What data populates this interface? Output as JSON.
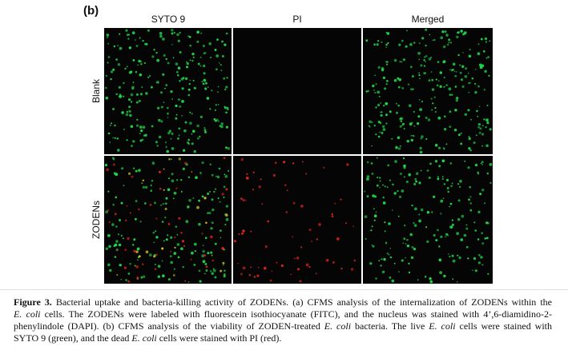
{
  "panel_label": "(b)",
  "columns": [
    "SYTO 9",
    "PI",
    "Merged"
  ],
  "rows": [
    "Blank",
    "ZODENs"
  ],
  "caption": {
    "lines": [
      [
        "Figure 3.",
        " Bacterial uptake and bacteria-killing activity of ZODENs. (a) CFMS analysis of the internalization of ZODENs within the"
      ],
      [
        "E. coli",
        " cells. The ZODENs were labeled with fluorescein isothiocyanate (FITC), and the nucleus was stained with 4’,6-diamidino-2-"
      ],
      [
        "phenylindole (DAPI). (b) CFMS analysis of the viability of ZODEN-treated ",
        "E. coli",
        " bacteria. The live ",
        "E. coli",
        " cells were stained with"
      ],
      [
        "SYTO 9 (green), and the dead ",
        "E. coli",
        " cells were stained with PI (red)."
      ]
    ]
  }
}
